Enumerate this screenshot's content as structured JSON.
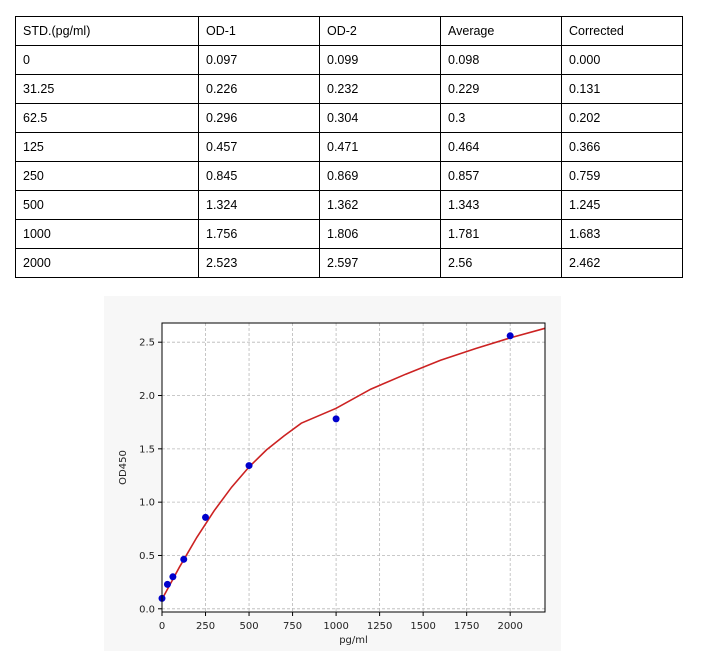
{
  "table": {
    "headers": [
      "STD.(pg/ml)",
      "OD-1",
      "OD-2",
      "Average",
      "Corrected"
    ],
    "rows": [
      [
        "0",
        "0.097",
        "0.099",
        "0.098",
        "0.000"
      ],
      [
        "31.25",
        "0.226",
        "0.232",
        "0.229",
        "0.131"
      ],
      [
        "62.5",
        "0.296",
        "0.304",
        "0.3",
        "0.202"
      ],
      [
        "125",
        "0.457",
        "0.471",
        "0.464",
        "0.366"
      ],
      [
        "250",
        "0.845",
        "0.869",
        "0.857",
        "0.759"
      ],
      [
        "500",
        "1.324",
        "1.362",
        "1.343",
        "1.245"
      ],
      [
        "1000",
        "1.756",
        "1.806",
        "1.781",
        "1.683"
      ],
      [
        "2000",
        "2.523",
        "2.597",
        "2.56",
        "2.462"
      ]
    ]
  },
  "chart_data": {
    "type": "scatter",
    "xlabel": "pg/ml",
    "ylabel": "OD450",
    "xlim": [
      0,
      2200
    ],
    "ylim": [
      -0.03,
      2.68
    ],
    "x_ticks": [
      0,
      250,
      500,
      750,
      1000,
      1250,
      1500,
      1750,
      2000
    ],
    "y_ticks": [
      0.0,
      0.5,
      1.0,
      1.5,
      2.0,
      2.5
    ],
    "x_tick_labels": [
      "0",
      "250",
      "500",
      "750",
      "1000",
      "1250",
      "1500",
      "1750",
      "2000"
    ],
    "y_tick_labels": [
      "0.0",
      "0.5",
      "1.0",
      "1.5",
      "2.0",
      "2.5"
    ],
    "grid": true,
    "points": {
      "x": [
        0,
        31.25,
        62.5,
        125,
        250,
        500,
        1000,
        2000
      ],
      "y": [
        0.098,
        0.229,
        0.3,
        0.464,
        0.857,
        1.343,
        1.781,
        2.56
      ],
      "color": "#0000cc"
    },
    "fit_curve": {
      "x": [
        0,
        50,
        100,
        150,
        200,
        300,
        400,
        500,
        600,
        700,
        800,
        1000,
        1200,
        1400,
        1600,
        1800,
        2000,
        2200
      ],
      "y": [
        0.09,
        0.24,
        0.39,
        0.53,
        0.67,
        0.92,
        1.14,
        1.33,
        1.49,
        1.62,
        1.74,
        1.88,
        2.06,
        2.2,
        2.33,
        2.44,
        2.54,
        2.63
      ],
      "color": "#cc2222"
    }
  }
}
